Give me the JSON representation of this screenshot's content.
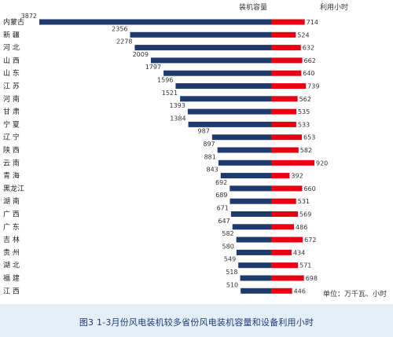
{
  "chart_data": {
    "type": "bar",
    "orientation": "diverging-horizontal",
    "caption": "图3 1-3月份风电装机较多省份风电装机容量和设备利用小时",
    "unit_note": "单位：万千瓦、小时",
    "legend_placement": "top-right",
    "grid": false,
    "categories": [
      "内蒙古",
      "新 疆",
      "河 北",
      "山 西",
      "山 东",
      "江 苏",
      "河 南",
      "甘 肃",
      "宁 夏",
      "辽 宁",
      "陕 西",
      "云 南",
      "青 海",
      "黑龙江",
      "湖 南",
      "广 西",
      "广 东",
      "吉 林",
      "贵 州",
      "湖 北",
      "福 建",
      "江 西"
    ],
    "series": [
      {
        "name": "装机容量",
        "color": "#1f3b6e",
        "direction": "left",
        "values": [
          3872,
          2356,
          2278,
          2009,
          1797,
          1596,
          1521,
          1393,
          1384,
          987,
          897,
          881,
          843,
          692,
          689,
          671,
          647,
          582,
          580,
          549,
          518,
          510
        ]
      },
      {
        "name": "利用小时",
        "color": "#e60012",
        "direction": "right",
        "values": [
          714,
          524,
          632,
          662,
          640,
          739,
          562,
          535,
          533,
          653,
          582,
          920,
          392,
          660,
          531,
          569,
          486,
          672,
          434,
          571,
          698,
          446
        ]
      }
    ]
  }
}
